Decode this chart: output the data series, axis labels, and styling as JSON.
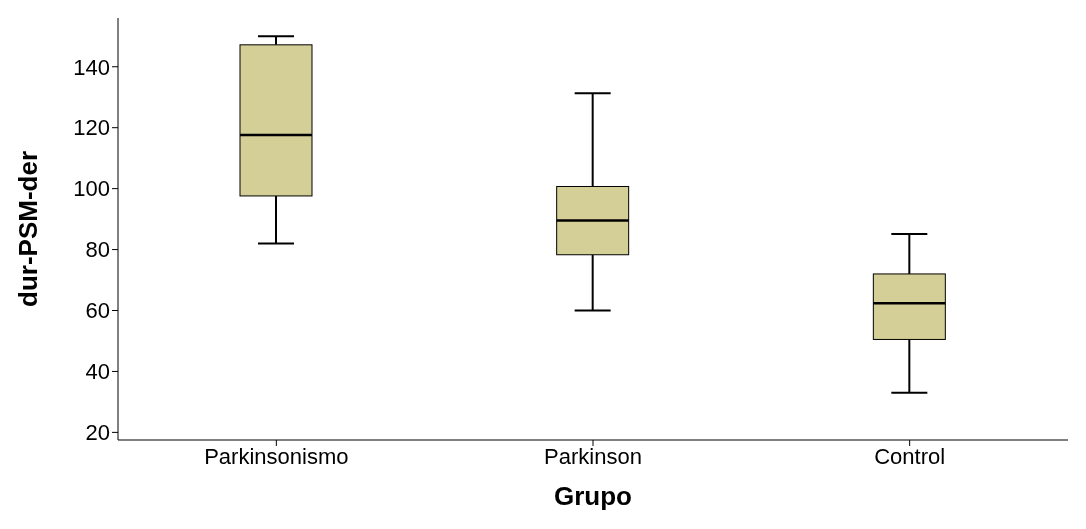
{
  "chart_data": {
    "type": "box",
    "xlabel": "Grupo",
    "ylabel": "dur-PSM-der",
    "categories": [
      "Parkinsonismo",
      "Parkinson",
      "Control"
    ],
    "color": "#d4cf96",
    "boxes": [
      {
        "low": 82,
        "q1": 97.6,
        "median": 117.6,
        "q3": 147.2,
        "high": 150
      },
      {
        "low": 60,
        "q1": 78.3,
        "median": 89.5,
        "q3": 100.7,
        "high": 131.3
      },
      {
        "low": 33,
        "q1": 50.5,
        "median": 62.4,
        "q3": 72,
        "high": 85.1
      }
    ],
    "ylim": [
      17.5,
      156
    ],
    "yticks": [
      20,
      40,
      60,
      80,
      100,
      120,
      140
    ]
  }
}
